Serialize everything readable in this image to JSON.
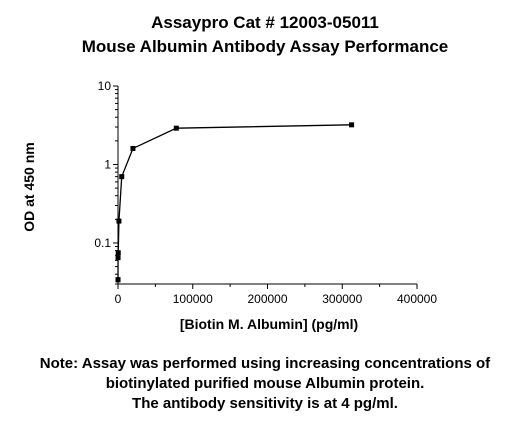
{
  "chart_data": {
    "type": "line",
    "title": "Assaypro Cat # 12003-05011",
    "subtitle": "Mouse Albumin Antibody Assay Performance",
    "xlabel": "[Biotin M. Albumin] (pg/ml)",
    "ylabel": "OD at 450 nm",
    "xlim": [
      0,
      400000
    ],
    "ylim": [
      0.03,
      10
    ],
    "y_scale": "log",
    "x_ticks": [
      "0",
      "100000",
      "200000",
      "300000",
      "400000"
    ],
    "y_ticks": [
      "0.1",
      "1",
      "10"
    ],
    "grid": false,
    "series": [
      {
        "marker": "square",
        "color": "#000000",
        "x": [
          4,
          20,
          80,
          310,
          1250,
          5000,
          20000,
          78000,
          312500
        ],
        "y": [
          0.034,
          0.034,
          0.065,
          0.075,
          0.19,
          0.7,
          1.6,
          2.9,
          3.2
        ]
      }
    ]
  },
  "note": {
    "line1": "Note: Assay was performed using increasing concentrations of",
    "line2": "biotinylated purified mouse Albumin protein.",
    "line3": "The antibody sensitivity is at 4 pg/ml."
  }
}
